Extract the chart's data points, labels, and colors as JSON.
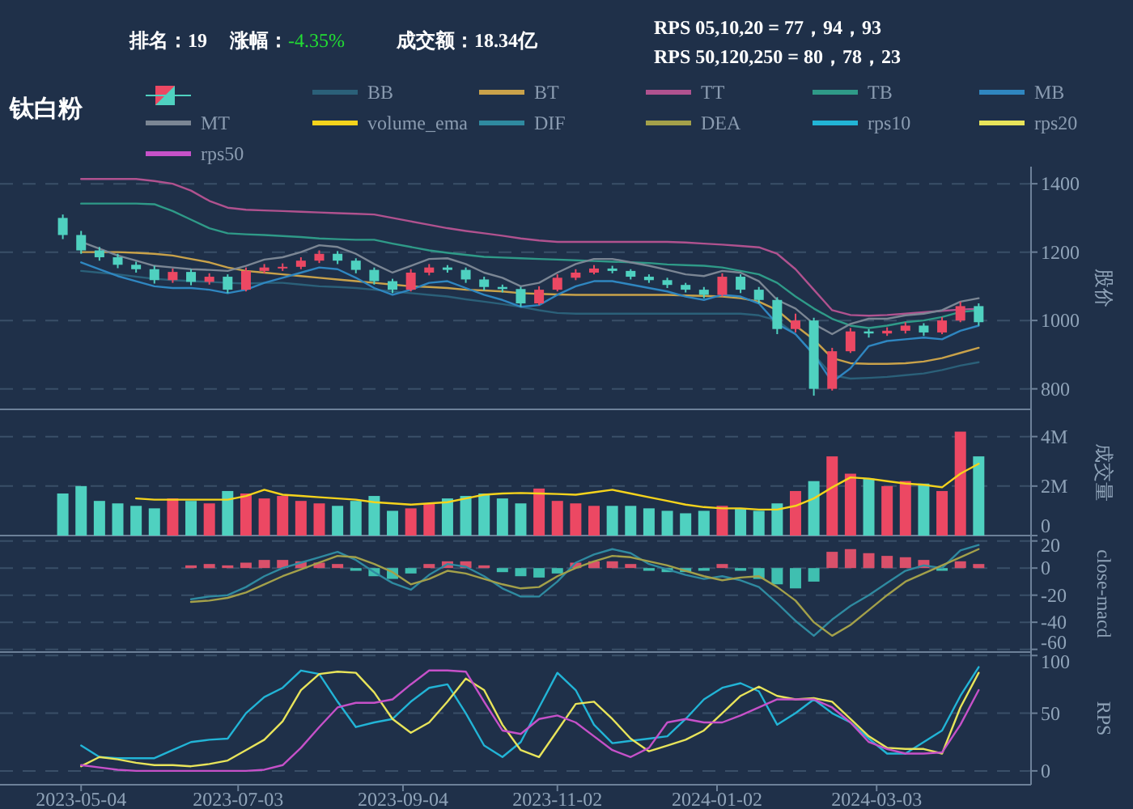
{
  "chart_data": [
    {
      "type": "candlestick",
      "title": "钛白粉",
      "annotations": [
        "排名：19",
        "涨幅：-4.35%",
        "成交额：18.34亿",
        "RPS 05,10,20 = 77，94，93",
        "RPS 50,120,250 = 80，78，23"
      ],
      "ylabel": "股价",
      "legend": "top",
      "grid": "y",
      "tick_labels": "y",
      "xlim": [
        "2023-04-03",
        "2024-05-01"
      ],
      "ylim": [
        740,
        1450
      ],
      "yticks": [
        800,
        1000,
        1200,
        1400
      ],
      "x": [
        "2023-04-27",
        "2023-05-04",
        "2023-05-11",
        "2023-05-18",
        "2023-05-25",
        "2023-06-01",
        "2023-06-08",
        "2023-06-15",
        "2023-06-22",
        "2023-06-29",
        "2023-07-06",
        "2023-07-13",
        "2023-07-20",
        "2023-07-27",
        "2023-08-03",
        "2023-08-10",
        "2023-08-17",
        "2023-08-24",
        "2023-08-31",
        "2023-09-07",
        "2023-09-14",
        "2023-09-21",
        "2023-09-28",
        "2023-10-05",
        "2023-10-12",
        "2023-10-19",
        "2023-10-26",
        "2023-11-02",
        "2023-11-09",
        "2023-11-16",
        "2023-11-23",
        "2023-11-30",
        "2023-12-07",
        "2023-12-14",
        "2023-12-21",
        "2023-12-28",
        "2024-01-04",
        "2024-01-11",
        "2024-01-18",
        "2024-01-25",
        "2024-02-01",
        "2024-02-08",
        "2024-02-15",
        "2024-02-22",
        "2024-02-29",
        "2024-03-07",
        "2024-03-14",
        "2024-03-21",
        "2024-03-28",
        "2024-04-04",
        "2024-04-11"
      ],
      "ohlc": [
        [
          1300,
          1310,
          1238,
          1250
        ],
        [
          1250,
          1262,
          1195,
          1205
        ],
        [
          1205,
          1215,
          1175,
          1185
        ],
        [
          1185,
          1195,
          1153,
          1163
        ],
        [
          1163,
          1172,
          1140,
          1150
        ],
        [
          1150,
          1160,
          1108,
          1118
        ],
        [
          1118,
          1152,
          1110,
          1142
        ],
        [
          1142,
          1150,
          1103,
          1113
        ],
        [
          1113,
          1138,
          1105,
          1128
        ],
        [
          1128,
          1135,
          1080,
          1090
        ],
        [
          1090,
          1155,
          1085,
          1145
        ],
        [
          1145,
          1165,
          1138,
          1155
        ],
        [
          1155,
          1167,
          1145,
          1157
        ],
        [
          1157,
          1185,
          1150,
          1175
        ],
        [
          1175,
          1205,
          1168,
          1195
        ],
        [
          1195,
          1203,
          1165,
          1175
        ],
        [
          1175,
          1182,
          1138,
          1148
        ],
        [
          1148,
          1155,
          1105,
          1115
        ],
        [
          1115,
          1122,
          1080,
          1090
        ],
        [
          1090,
          1150,
          1085,
          1140
        ],
        [
          1140,
          1165,
          1132,
          1155
        ],
        [
          1155,
          1162,
          1140,
          1148
        ],
        [
          1148,
          1155,
          1110,
          1120
        ],
        [
          1120,
          1128,
          1088,
          1098
        ],
        [
          1098,
          1105,
          1082,
          1092
        ],
        [
          1092,
          1098,
          1040,
          1050
        ],
        [
          1050,
          1100,
          1045,
          1090
        ],
        [
          1090,
          1135,
          1085,
          1125
        ],
        [
          1125,
          1150,
          1118,
          1140
        ],
        [
          1140,
          1162,
          1135,
          1152
        ],
        [
          1152,
          1160,
          1138,
          1145
        ],
        [
          1145,
          1150,
          1120,
          1128
        ],
        [
          1128,
          1135,
          1110,
          1118
        ],
        [
          1118,
          1125,
          1095,
          1104
        ],
        [
          1104,
          1110,
          1082,
          1090
        ],
        [
          1090,
          1098,
          1065,
          1075
        ],
        [
          1075,
          1138,
          1070,
          1128
        ],
        [
          1128,
          1135,
          1080,
          1090
        ],
        [
          1090,
          1098,
          1050,
          1060
        ],
        [
          1060,
          1068,
          960,
          975
        ],
        [
          975,
          1020,
          965,
          1000
        ],
        [
          1000,
          1008,
          780,
          800
        ],
        [
          800,
          920,
          795,
          910
        ],
        [
          910,
          978,
          905,
          968
        ],
        [
          968,
          975,
          950,
          962
        ],
        [
          962,
          980,
          955,
          970
        ],
        [
          970,
          995,
          962,
          985
        ],
        [
          985,
          992,
          955,
          965
        ],
        [
          965,
          1010,
          960,
          1000
        ],
        [
          1000,
          1055,
          995,
          1042
        ],
        [
          1042,
          1050,
          985,
          995
        ]
      ],
      "colors": [
        "#4fd1c0",
        "#4fd1c0",
        "#4fd1c0",
        "#4fd1c0",
        "#4fd1c0",
        "#4fd1c0",
        "#ec4863",
        "#4fd1c0",
        "#ec4863",
        "#4fd1c0",
        "#ec4863",
        "#ec4863",
        "#ec4863",
        "#ec4863",
        "#ec4863",
        "#4fd1c0",
        "#4fd1c0",
        "#4fd1c0",
        "#4fd1c0",
        "#ec4863",
        "#ec4863",
        "#4fd1c0",
        "#4fd1c0",
        "#4fd1c0",
        "#4fd1c0",
        "#4fd1c0",
        "#ec4863",
        "#ec4863",
        "#ec4863",
        "#ec4863",
        "#4fd1c0",
        "#4fd1c0",
        "#4fd1c0",
        "#4fd1c0",
        "#4fd1c0",
        "#4fd1c0",
        "#ec4863",
        "#4fd1c0",
        "#4fd1c0",
        "#4fd1c0",
        "#ec4863",
        "#4fd1c0",
        "#ec4863",
        "#ec4863",
        "#4fd1c0",
        "#ec4863",
        "#ec4863",
        "#4fd1c0",
        "#ec4863",
        "#ec4863",
        "#4fd1c0"
      ],
      "series": [
        {
          "name": "BB",
          "type": "line",
          "color": "#2b6079",
          "values": [
            null,
            1145,
            1140,
            1135,
            1128,
            1122,
            1118,
            1115,
            1113,
            1110,
            1108,
            1110,
            1110,
            1105,
            1100,
            1098,
            1095,
            1090,
            1085,
            1080,
            1075,
            1070,
            1062,
            1055,
            1048,
            1040,
            1030,
            1022,
            1020,
            1020,
            1020,
            1020,
            1020,
            1020,
            1020,
            1020,
            1020,
            1020,
            1015,
            1000,
            960,
            900,
            840,
            830,
            832,
            835,
            840,
            845,
            855,
            868,
            878
          ]
        },
        {
          "name": "BT",
          "type": "line",
          "color": "#c9a24a",
          "values": [
            null,
            1200,
            1200,
            1200,
            1198,
            1195,
            1190,
            1180,
            1170,
            1155,
            1145,
            1140,
            1135,
            1130,
            1125,
            1120,
            1115,
            1110,
            1105,
            1100,
            1098,
            1095,
            1090,
            1088,
            1085,
            1080,
            1078,
            1076,
            1075,
            1075,
            1075,
            1075,
            1075,
            1075,
            1073,
            1072,
            1070,
            1065,
            1055,
            1030,
            985,
            944,
            890,
            875,
            873,
            873,
            875,
            880,
            890,
            905,
            920
          ]
        },
        {
          "name": "TT",
          "type": "line",
          "color": "#b0528f",
          "values": [
            null,
            1414,
            1414,
            1414,
            1414,
            1408,
            1400,
            1380,
            1350,
            1330,
            1324,
            1322,
            1320,
            1318,
            1316,
            1314,
            1312,
            1310,
            1300,
            1290,
            1280,
            1270,
            1262,
            1255,
            1248,
            1240,
            1234,
            1230,
            1230,
            1230,
            1230,
            1230,
            1230,
            1230,
            1228,
            1225,
            1222,
            1218,
            1214,
            1195,
            1150,
            1090,
            1030,
            1016,
            1014,
            1016,
            1020,
            1024,
            1028,
            1032,
            1034
          ]
        },
        {
          "name": "TB",
          "type": "line",
          "color": "#2f9a88",
          "values": [
            null,
            1342,
            1342,
            1342,
            1342,
            1340,
            1320,
            1295,
            1270,
            1255,
            1252,
            1250,
            1247,
            1244,
            1240,
            1238,
            1236,
            1236,
            1225,
            1215,
            1205,
            1198,
            1192,
            1186,
            1184,
            1182,
            1180,
            1178,
            1176,
            1174,
            1172,
            1170,
            1168,
            1164,
            1162,
            1160,
            1155,
            1145,
            1135,
            1110,
            1070,
            1035,
            1005,
            985,
            978,
            985,
            995,
            1000,
            1010,
            1025,
            1030
          ]
        },
        {
          "name": "MB",
          "type": "line",
          "color": "#2f86c0",
          "values": [
            null,
            1170,
            1150,
            1130,
            1115,
            1100,
            1095,
            1095,
            1090,
            1080,
            1090,
            1110,
            1125,
            1140,
            1155,
            1150,
            1125,
            1095,
            1075,
            1090,
            1110,
            1115,
            1095,
            1075,
            1060,
            1040,
            1045,
            1075,
            1100,
            1115,
            1115,
            1105,
            1095,
            1085,
            1070,
            1060,
            1075,
            1070,
            1050,
            990,
            960,
            900,
            820,
            860,
            925,
            940,
            945,
            950,
            945,
            970,
            985
          ]
        },
        {
          "name": "MT",
          "type": "line",
          "color": "#7b8694",
          "values": [
            null,
            1230,
            1210,
            1190,
            1175,
            1160,
            1155,
            1150,
            1148,
            1145,
            1160,
            1178,
            1185,
            1200,
            1220,
            1215,
            1195,
            1165,
            1140,
            1160,
            1180,
            1182,
            1165,
            1140,
            1125,
            1100,
            1110,
            1140,
            1165,
            1180,
            1180,
            1170,
            1160,
            1148,
            1135,
            1130,
            1145,
            1140,
            1115,
            1060,
            1035,
            990,
            960,
            990,
            1005,
            1005,
            1015,
            1020,
            1030,
            1055,
            1065
          ]
        }
      ]
    },
    {
      "type": "bar",
      "ylabel": "成交量",
      "legend": "top",
      "grid": "y",
      "tick_labels": "y",
      "xlim": [
        "2023-04-03",
        "2024-05-01"
      ],
      "ylim": [
        0,
        5.1
      ],
      "yticks": [
        0,
        {
          "value": 2,
          "label": "2M"
        },
        {
          "value": 4,
          "label": "4M"
        }
      ],
      "x": [
        "2023-04-27",
        "2023-05-04",
        "2023-05-11",
        "2023-05-18",
        "2023-05-25",
        "2023-06-01",
        "2023-06-08",
        "2023-06-15",
        "2023-06-22",
        "2023-06-29",
        "2023-07-06",
        "2023-07-13",
        "2023-07-20",
        "2023-07-27",
        "2023-08-03",
        "2023-08-10",
        "2023-08-17",
        "2023-08-24",
        "2023-08-31",
        "2023-09-07",
        "2023-09-14",
        "2023-09-21",
        "2023-09-28",
        "2023-10-05",
        "2023-10-12",
        "2023-10-19",
        "2023-10-26",
        "2023-11-02",
        "2023-11-09",
        "2023-11-16",
        "2023-11-23",
        "2023-11-30",
        "2023-12-07",
        "2023-12-14",
        "2023-12-21",
        "2023-12-28",
        "2024-01-04",
        "2024-01-11",
        "2024-01-18",
        "2024-01-25",
        "2024-02-01",
        "2024-02-08",
        "2024-02-15",
        "2024-02-22",
        "2024-02-29",
        "2024-03-07",
        "2024-03-14",
        "2024-03-21",
        "2024-03-28",
        "2024-04-04",
        "2024-04-11"
      ],
      "series": [
        {
          "type": "bar",
          "colors": [
            "#4fd1c0",
            "#4fd1c0",
            "#4fd1c0",
            "#4fd1c0",
            "#4fd1c0",
            "#4fd1c0",
            "#ec4863",
            "#4fd1c0",
            "#ec4863",
            "#4fd1c0",
            "#ec4863",
            "#ec4863",
            "#ec4863",
            "#ec4863",
            "#ec4863",
            "#4fd1c0",
            "#4fd1c0",
            "#4fd1c0",
            "#4fd1c0",
            "#ec4863",
            "#ec4863",
            "#4fd1c0",
            "#4fd1c0",
            "#4fd1c0",
            "#4fd1c0",
            "#4fd1c0",
            "#ec4863",
            "#ec4863",
            "#ec4863",
            "#ec4863",
            "#4fd1c0",
            "#4fd1c0",
            "#4fd1c0",
            "#4fd1c0",
            "#4fd1c0",
            "#4fd1c0",
            "#ec4863",
            "#4fd1c0",
            "#4fd1c0",
            "#4fd1c0",
            "#ec4863",
            "#4fd1c0",
            "#ec4863",
            "#ec4863",
            "#4fd1c0",
            "#ec4863",
            "#ec4863",
            "#4fd1c0",
            "#ec4863",
            "#ec4863",
            "#4fd1c0"
          ],
          "values": [
            1.7,
            2.0,
            1.4,
            1.3,
            1.2,
            1.1,
            1.5,
            1.4,
            1.3,
            1.8,
            1.7,
            1.5,
            1.6,
            1.4,
            1.3,
            1.2,
            1.4,
            1.6,
            1.0,
            1.1,
            1.3,
            1.5,
            1.6,
            1.7,
            1.5,
            1.3,
            1.9,
            1.4,
            1.3,
            1.2,
            1.2,
            1.2,
            1.1,
            1.0,
            0.9,
            1.0,
            1.2,
            1.1,
            1.0,
            1.3,
            1.8,
            2.2,
            3.2,
            2.5,
            2.3,
            2.0,
            2.2,
            2.1,
            1.8,
            4.2,
            3.2
          ]
        },
        {
          "name": "volume_ema",
          "type": "line",
          "color": "#f5d31c",
          "values": [
            null,
            null,
            null,
            null,
            1.5,
            1.45,
            1.45,
            1.45,
            1.45,
            1.45,
            1.6,
            1.85,
            1.65,
            1.6,
            1.55,
            1.5,
            1.45,
            1.35,
            1.3,
            1.25,
            1.3,
            1.35,
            1.5,
            1.65,
            1.7,
            1.72,
            1.7,
            1.68,
            1.65,
            1.75,
            1.85,
            1.7,
            1.55,
            1.4,
            1.25,
            1.15,
            1.1,
            1.1,
            1.05,
            1.05,
            1.2,
            1.5,
            1.95,
            2.35,
            2.3,
            2.2,
            2.1,
            2.05,
            1.95,
            2.5,
            2.9
          ]
        }
      ]
    },
    {
      "type": "bar",
      "ylabel": "close-macd",
      "legend": "top",
      "grid": "y",
      "tick_labels": "y",
      "xlim": [
        "2023-04-03",
        "2024-05-01"
      ],
      "ylim": [
        -62,
        24
      ],
      "yticks": [
        20,
        0,
        -20,
        -40,
        -60
      ],
      "x": [
        "2023-06-15",
        "2023-06-22",
        "2023-06-29",
        "2023-07-06",
        "2023-07-13",
        "2023-07-20",
        "2023-07-27",
        "2023-08-03",
        "2023-08-10",
        "2023-08-17",
        "2023-08-24",
        "2023-08-31",
        "2023-09-07",
        "2023-09-14",
        "2023-09-21",
        "2023-09-28",
        "2023-10-05",
        "2023-10-12",
        "2023-10-19",
        "2023-10-26",
        "2023-11-02",
        "2023-11-09",
        "2023-11-16",
        "2023-11-23",
        "2023-11-30",
        "2023-12-07",
        "2023-12-14",
        "2023-12-21",
        "2023-12-28",
        "2024-01-04",
        "2024-01-11",
        "2024-01-18",
        "2024-01-25",
        "2024-02-01",
        "2024-02-08",
        "2024-02-15",
        "2024-02-22",
        "2024-02-29",
        "2024-03-07",
        "2024-03-14",
        "2024-03-21",
        "2024-03-28",
        "2024-04-04",
        "2024-04-11"
      ],
      "series": [
        {
          "type": "bar",
          "colors": [
            "#d9506a",
            "#d9506a",
            "#d9506a",
            "#d9506a",
            "#d9506a",
            "#d9506a",
            "#d9506a",
            "#d9506a",
            "#d9506a",
            "#3fbfb0",
            "#3fbfb0",
            "#3fbfb0",
            "#3fbfb0",
            "#d9506a",
            "#d9506a",
            "#d9506a",
            "#d9506a",
            "#3fbfb0",
            "#3fbfb0",
            "#3fbfb0",
            "#3fbfb0",
            "#d9506a",
            "#d9506a",
            "#d9506a",
            "#d9506a",
            "#3fbfb0",
            "#3fbfb0",
            "#3fbfb0",
            "#3fbfb0",
            "#d9506a",
            "#3fbfb0",
            "#3fbfb0",
            "#3fbfb0",
            "#3fbfb0",
            "#3fbfb0",
            "#d9506a",
            "#d9506a",
            "#d9506a",
            "#d9506a",
            "#d9506a",
            "#d9506a",
            "#3fbfb0",
            "#d9506a",
            "#d9506a"
          ],
          "values": [
            2,
            3,
            2,
            4,
            6,
            6,
            5,
            4,
            3,
            -2,
            -6,
            -8,
            -4,
            3,
            5,
            5,
            2,
            -3,
            -6,
            -7,
            -4,
            4,
            5,
            5,
            3,
            -2,
            -3,
            -3,
            -2,
            3,
            -2,
            -8,
            -12,
            -15,
            -10,
            12,
            14,
            11,
            9,
            8,
            6,
            -2,
            5,
            3
          ]
        },
        {
          "name": "DIF",
          "type": "line",
          "color": "#2f8aa0",
          "values": [
            -23,
            -21,
            -20,
            -14,
            -6,
            0,
            4,
            8,
            12,
            6,
            -3,
            -11,
            -16,
            -5,
            3,
            1,
            -6,
            -15,
            -21,
            -21,
            -10,
            4,
            10,
            14,
            11,
            3,
            -1,
            -5,
            -8,
            -6,
            -9,
            -14,
            -26,
            -39,
            -50,
            -38,
            -28,
            -20,
            -11,
            -2,
            2,
            0,
            13,
            17
          ]
        },
        {
          "name": "DEA",
          "type": "line",
          "color": "#a3a04a",
          "values": [
            -25,
            -24,
            -22,
            -18,
            -12,
            -6,
            -1,
            4,
            9,
            8,
            3,
            -3,
            -12,
            -8,
            -2,
            -4,
            -8,
            -12,
            -15,
            -14,
            -6,
            0,
            5,
            9,
            8,
            5,
            2,
            -2,
            -6,
            -9,
            -7,
            -6,
            -14,
            -24,
            -40,
            -50,
            -42,
            -31,
            -20,
            -10,
            -4,
            2,
            8,
            14
          ]
        }
      ]
    },
    {
      "type": "line",
      "ylabel": "RPS",
      "legend": "top",
      "grid": "y",
      "xlim": [
        "2023-04-03",
        "2024-05-01"
      ],
      "ylim": [
        -12,
        103
      ],
      "yticks": [
        0,
        50,
        100
      ],
      "xticks": [
        "2023-05-04",
        "2023-07-03",
        "2023-09-04",
        "2023-11-02",
        "2024-01-02",
        "2024-03-03"
      ],
      "x": [
        "2023-05-04",
        "2023-05-11",
        "2023-05-18",
        "2023-05-25",
        "2023-06-01",
        "2023-06-08",
        "2023-06-15",
        "2023-06-22",
        "2023-06-29",
        "2023-07-06",
        "2023-07-13",
        "2023-07-20",
        "2023-07-27",
        "2023-08-03",
        "2023-08-10",
        "2023-08-17",
        "2023-08-24",
        "2023-08-31",
        "2023-09-07",
        "2023-09-14",
        "2023-09-21",
        "2023-09-28",
        "2023-10-05",
        "2023-10-12",
        "2023-10-19",
        "2023-10-26",
        "2023-11-02",
        "2023-11-09",
        "2023-11-16",
        "2023-11-23",
        "2023-11-30",
        "2023-12-07",
        "2023-12-14",
        "2023-12-21",
        "2023-12-28",
        "2024-01-04",
        "2024-01-11",
        "2024-01-18",
        "2024-01-25",
        "2024-02-01",
        "2024-02-08",
        "2024-02-15",
        "2024-02-22",
        "2024-02-29",
        "2024-03-07",
        "2024-03-14",
        "2024-03-21",
        "2024-03-28",
        "2024-04-04",
        "2024-04-11"
      ],
      "series": [
        {
          "name": "rps10",
          "color": "#22b4d6",
          "values": [
            22,
            12,
            11,
            11,
            11,
            18,
            25,
            27,
            28,
            50,
            64,
            72,
            87,
            84,
            60,
            38,
            42,
            45,
            60,
            72,
            75,
            50,
            22,
            12,
            25,
            55,
            85,
            70,
            40,
            24,
            26,
            28,
            30,
            45,
            62,
            72,
            76,
            69,
            40,
            50,
            62,
            50,
            42,
            28,
            15,
            15,
            25,
            35,
            65,
            90
          ]
        },
        {
          "name": "rps20",
          "color": "#e8e45a",
          "values": [
            4,
            12,
            10,
            7,
            5,
            5,
            4,
            6,
            9,
            18,
            27,
            43,
            70,
            84,
            86,
            85,
            68,
            45,
            33,
            42,
            60,
            80,
            70,
            40,
            18,
            12,
            35,
            58,
            60,
            45,
            28,
            17,
            22,
            27,
            35,
            50,
            65,
            73,
            65,
            62,
            63,
            60,
            45,
            30,
            20,
            19,
            19,
            15,
            55,
            85
          ]
        },
        {
          "name": "rps50",
          "color": "#c651c9",
          "values": [
            5,
            3,
            1,
            0,
            0,
            0,
            0,
            0,
            0,
            0,
            1,
            5,
            20,
            38,
            55,
            59,
            59,
            62,
            75,
            87,
            87,
            86,
            60,
            35,
            32,
            45,
            48,
            42,
            30,
            18,
            12,
            20,
            42,
            45,
            42,
            42,
            48,
            55,
            62,
            62,
            62,
            55,
            42,
            25,
            19,
            15,
            15,
            16,
            40,
            70
          ]
        }
      ]
    }
  ]
}
